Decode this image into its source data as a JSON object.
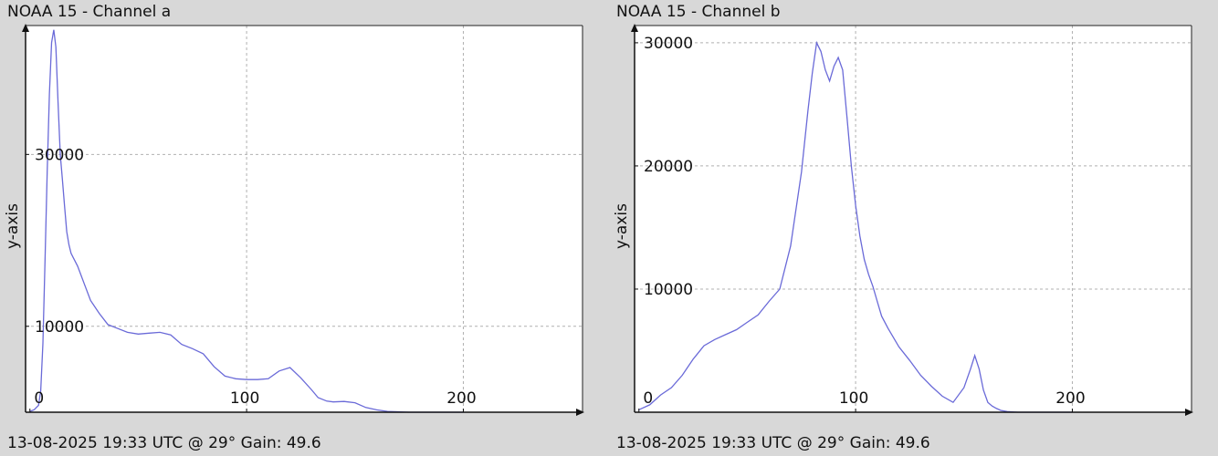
{
  "panels": [
    {
      "title": "NOAA 15 - Channel a",
      "footer": "13-08-2025 19:33 UTC @ 29° Gain: 49.6"
    },
    {
      "title": "NOAA 15 - Channel b",
      "footer": "13-08-2025 19:33 UTC @ 29° Gain: 49.6"
    }
  ],
  "chart_data": [
    {
      "type": "line",
      "title": "NOAA 15 - Channel a",
      "xlabel": "",
      "ylabel": "y-axis",
      "xlim": [
        -2,
        255
      ],
      "ylim": [
        0,
        45000
      ],
      "xticks": [
        0,
        100,
        200
      ],
      "yticks": [
        10000,
        30000
      ],
      "grid": true,
      "line_color": "#6a6ad8",
      "series": [
        {
          "x": [
            0,
            2,
            4,
            5,
            6,
            7,
            8,
            9,
            10,
            11,
            12,
            13,
            14,
            15,
            16,
            17,
            18,
            19,
            20,
            22,
            25,
            28,
            32,
            36,
            40,
            45,
            50,
            55,
            60,
            65,
            70,
            75,
            80,
            85,
            90,
            95,
            100,
            105,
            110,
            115,
            120,
            125,
            130,
            133,
            137,
            140,
            145,
            150,
            155,
            160,
            165,
            170,
            175,
            180,
            185,
            190,
            195,
            200
          ],
          "y": [
            100,
            300,
            800,
            2500,
            8000,
            18000,
            28000,
            37000,
            43000,
            44500,
            42500,
            36000,
            30000,
            27000,
            24000,
            21000,
            19500,
            18500,
            18000,
            17000,
            15000,
            13000,
            11500,
            10200,
            9800,
            9300,
            9100,
            9200,
            9300,
            9000,
            7900,
            7400,
            6800,
            5300,
            4200,
            3900,
            3800,
            3800,
            3900,
            4800,
            5200,
            4000,
            2600,
            1700,
            1300,
            1200,
            1250,
            1100,
            550,
            280,
            100,
            50,
            0,
            0,
            0,
            0,
            0,
            0
          ]
        }
      ]
    },
    {
      "type": "line",
      "title": "NOAA 15 - Channel b",
      "xlabel": "",
      "ylabel": "y-axis",
      "xlim": [
        -2,
        255
      ],
      "ylim": [
        0,
        31400
      ],
      "xticks": [
        0,
        100,
        200
      ],
      "yticks": [
        10000,
        20000,
        30000
      ],
      "grid": true,
      "line_color": "#6a6ad8",
      "series": [
        {
          "x": [
            0,
            5,
            10,
            15,
            20,
            25,
            30,
            35,
            40,
            45,
            50,
            55,
            60,
            65,
            70,
            75,
            78,
            80,
            82,
            84,
            86,
            88,
            90,
            92,
            94,
            96,
            98,
            100,
            102,
            104,
            106,
            108,
            110,
            112,
            115,
            120,
            125,
            130,
            135,
            140,
            145,
            150,
            153,
            155,
            157,
            159,
            161,
            163,
            165,
            167,
            170,
            175,
            180,
            185,
            190,
            195,
            200
          ],
          "y": [
            200,
            600,
            1400,
            2000,
            3000,
            4300,
            5400,
            5900,
            6300,
            6700,
            7300,
            7900,
            9000,
            10000,
            13500,
            19500,
            24500,
            27500,
            30000,
            29300,
            27800,
            26900,
            28100,
            28800,
            27800,
            24000,
            20000,
            16800,
            14300,
            12400,
            11200,
            10200,
            9000,
            7800,
            6800,
            5300,
            4200,
            3000,
            2100,
            1300,
            800,
            2000,
            3500,
            4600,
            3500,
            1800,
            800,
            500,
            300,
            150,
            50,
            0,
            0,
            0,
            0,
            0,
            0
          ]
        }
      ]
    }
  ]
}
